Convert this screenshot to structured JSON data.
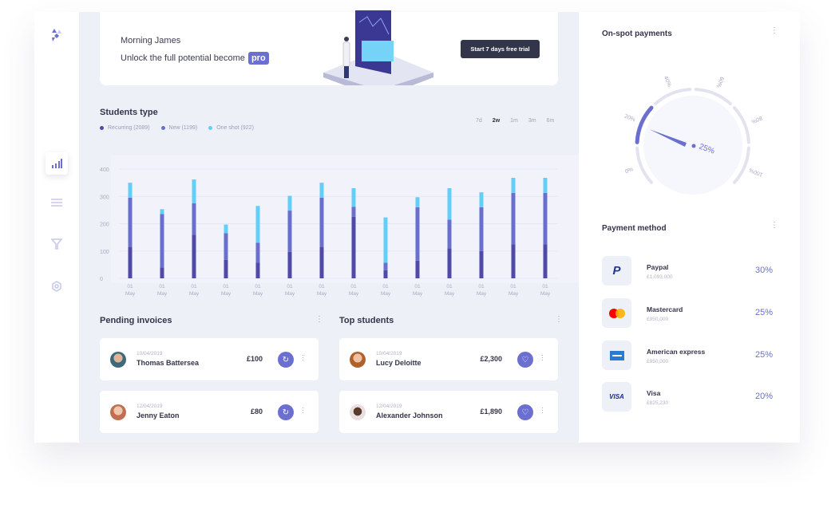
{
  "banner": {
    "greeting": "Morning James",
    "message": "Unlock the full potential become",
    "pro_badge": "pro",
    "trial_button": "Start 7 days free trial"
  },
  "sidebar": {
    "items": [
      "analytics-icon",
      "sliders-icon",
      "filter-icon",
      "settings-icon"
    ],
    "active": 0
  },
  "students_type": {
    "title": "Students type",
    "ranges": [
      "7d",
      "2w",
      "1m",
      "3m",
      "6m"
    ],
    "selected_range": "2w"
  },
  "chart_data": {
    "type": "bar",
    "stacked": true,
    "title": "Students type",
    "legend": [
      {
        "label": "Recurring (2089)",
        "color": "#4f4aa6"
      },
      {
        "label": "New (1199)",
        "color": "#6b6fcc"
      },
      {
        "label": "One shot (922)",
        "color": "#64cff5"
      }
    ],
    "categories": [
      [
        "01",
        "May"
      ],
      [
        "01",
        "May"
      ],
      [
        "01",
        "May"
      ],
      [
        "01",
        "May"
      ],
      [
        "01",
        "May"
      ],
      [
        "01",
        "May"
      ],
      [
        "01",
        "May"
      ],
      [
        "01",
        "May"
      ],
      [
        "01",
        "May"
      ],
      [
        "01",
        "May"
      ],
      [
        "01",
        "May"
      ],
      [
        "01",
        "May"
      ],
      [
        "01",
        "May"
      ],
      [
        "01",
        "May"
      ]
    ],
    "series": [
      {
        "name": "Recurring",
        "values": [
          115,
          40,
          160,
          68,
          58,
          97,
          115,
          225,
          30,
          65,
          110,
          100,
          125,
          125
        ]
      },
      {
        "name": "New",
        "values": [
          180,
          195,
          115,
          97,
          72,
          151,
          180,
          37,
          27,
          195,
          105,
          160,
          188,
          188
        ]
      },
      {
        "name": "One shot",
        "values": [
          55,
          18,
          87,
          32,
          135,
          54,
          55,
          68,
          166,
          37,
          115,
          55,
          55,
          55
        ]
      }
    ],
    "yticks": [
      0,
      100,
      200,
      300,
      400
    ],
    "ylim": [
      0,
      400
    ],
    "grid": true
  },
  "pending": {
    "title": "Pending invoices",
    "items": [
      {
        "date": "10/04/2019",
        "name": "Thomas Battersea",
        "amount": "£100"
      },
      {
        "date": "12/04/2019",
        "name": "Jenny Eaton",
        "amount": "£80"
      }
    ]
  },
  "top": {
    "title": "Top students",
    "items": [
      {
        "date": "10/04/2019",
        "name": "Lucy Deloitte",
        "amount": "£2,300"
      },
      {
        "date": "12/04/2019",
        "name": "Alexander Johnson",
        "amount": "£1,890"
      }
    ]
  },
  "onspot": {
    "title": "On-spot payments",
    "value_label": "25%",
    "value": 25,
    "labels": [
      "0%",
      "20%",
      "40%",
      "60%",
      "80%",
      "100%"
    ],
    "accent": "#6a6fd0"
  },
  "payment": {
    "title": "Payment method",
    "items": [
      {
        "name": "Paypal",
        "amount": "£1,093,000",
        "pct": "30%"
      },
      {
        "name": "Mastercard",
        "amount": "£950,000",
        "pct": "25%"
      },
      {
        "name": "American express",
        "amount": "£950,000",
        "pct": "25%"
      },
      {
        "name": "Visa",
        "amount": "£825,230",
        "pct": "20%",
        "logo_text": "VISA"
      }
    ]
  }
}
